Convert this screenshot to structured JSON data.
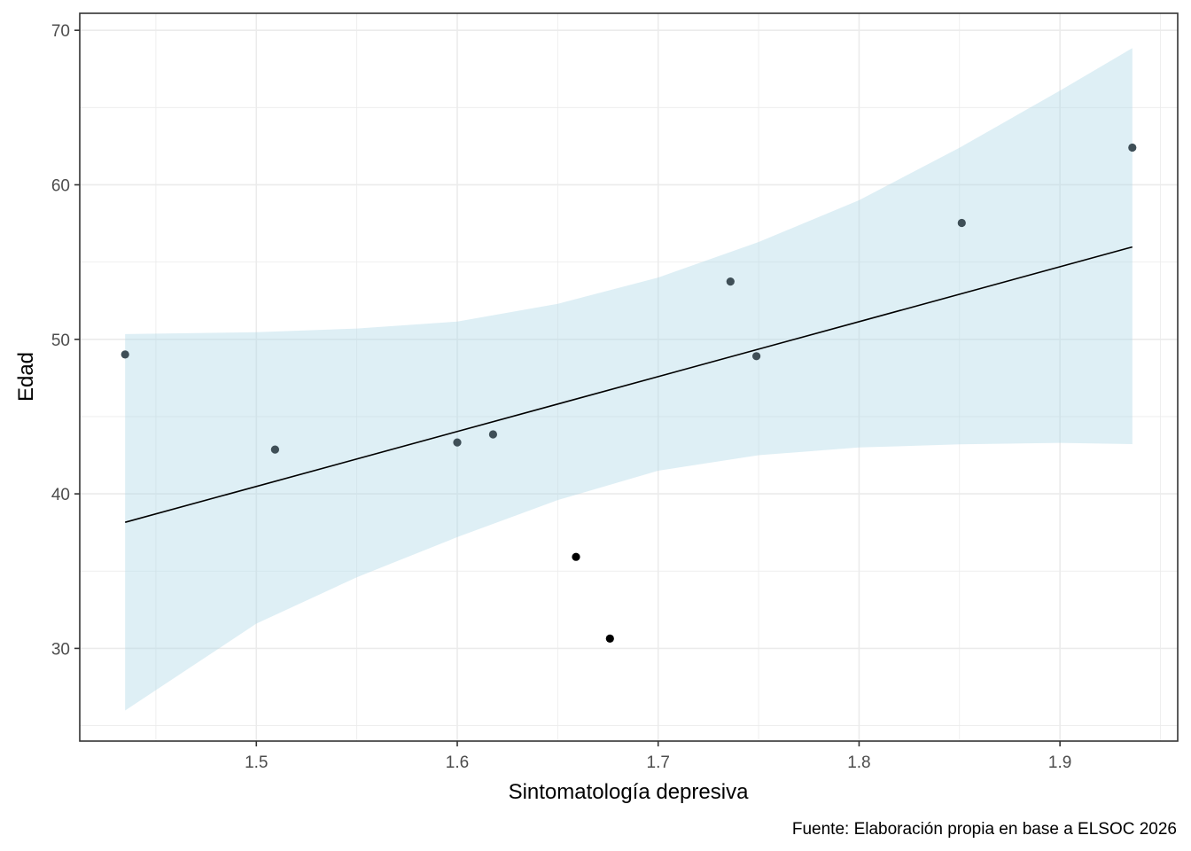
{
  "chart_data": {
    "type": "scatter",
    "title": "",
    "xlabel": "Sintomatología depresiva",
    "ylabel": "Edad",
    "caption": "Fuente: Elaboración propia en base a ELSOC 2026",
    "xlim": [
      1.4121,
      1.9586
    ],
    "ylim": [
      24.0,
      71.1
    ],
    "x_ticks": [
      1.5,
      1.6,
      1.7,
      1.8,
      1.9
    ],
    "x_tick_labels": [
      "1.5",
      "1.6",
      "1.7",
      "1.8",
      "1.9"
    ],
    "x_minor_ticks": [
      1.45,
      1.55,
      1.65,
      1.75,
      1.85,
      1.95
    ],
    "y_ticks": [
      30,
      40,
      50,
      60,
      70
    ],
    "y_tick_labels": [
      "30",
      "40",
      "50",
      "60",
      "70"
    ],
    "y_minor_ticks": [
      25,
      35,
      45,
      55,
      65
    ],
    "grid": true,
    "legend": "none",
    "colors": {
      "points_inside_band": "#3f4f57",
      "points_outside_band": "#000000",
      "fit_line": "#000000",
      "ci_band": "#add8e6",
      "grid": "#ebebeb",
      "panel_border": "#333333"
    },
    "points": [
      {
        "x": 1.4347,
        "y": 49.02
      },
      {
        "x": 1.5093,
        "y": 42.87
      },
      {
        "x": 1.6,
        "y": 43.33
      },
      {
        "x": 1.6178,
        "y": 43.85
      },
      {
        "x": 1.6591,
        "y": 35.92
      },
      {
        "x": 1.676,
        "y": 30.63
      },
      {
        "x": 1.736,
        "y": 53.74
      },
      {
        "x": 1.7489,
        "y": 48.91
      },
      {
        "x": 1.8511,
        "y": 57.53
      },
      {
        "x": 1.936,
        "y": 62.41
      }
    ],
    "fit_line": {
      "method": "lm",
      "x": [
        1.4347,
        1.936
      ],
      "y": [
        38.16,
        55.98
      ]
    },
    "ci_band": {
      "x": [
        1.4347,
        1.5,
        1.55,
        1.6,
        1.65,
        1.7,
        1.75,
        1.8,
        1.85,
        1.9,
        1.936
      ],
      "lower": [
        25.98,
        31.6,
        34.6,
        37.2,
        39.6,
        41.5,
        42.5,
        43.0,
        43.2,
        43.3,
        43.22
      ],
      "upper": [
        50.34,
        50.46,
        50.7,
        51.15,
        52.3,
        54.0,
        56.3,
        59.0,
        62.4,
        66.1,
        68.85
      ]
    }
  }
}
